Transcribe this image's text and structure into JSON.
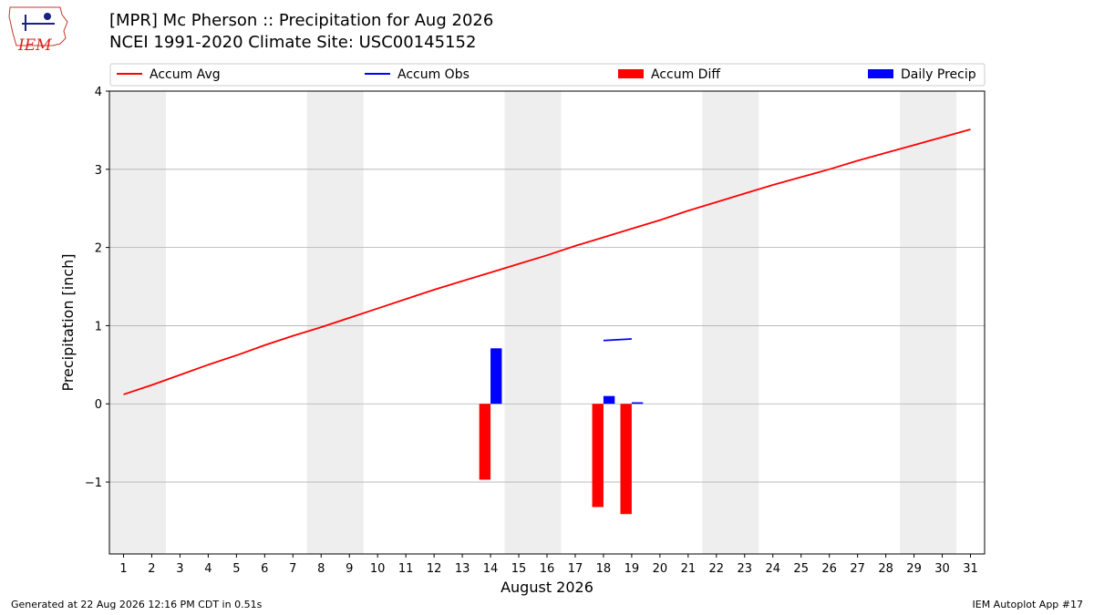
{
  "header": {
    "title_line1": "[MPR] Mc Pherson :: Precipitation for Aug 2026",
    "title_line2": "NCEI 1991-2020 Climate Site: USC00145152"
  },
  "logo": {
    "text": "IEM"
  },
  "footer": {
    "left": "Generated at 22 Aug 2026 12:16 PM CDT in 0.51s",
    "right": "IEM Autoplot App #17"
  },
  "chart_data": {
    "type": "bar",
    "xlabel": "August 2026",
    "ylabel": "Precipitation [inch]",
    "xlim": [
      0.5,
      31.5
    ],
    "ylim": [
      -1.92,
      4
    ],
    "yticks": [
      -1,
      0,
      1,
      2,
      3,
      4
    ],
    "ytick_labels": [
      "−1",
      "0",
      "1",
      "2",
      "3",
      "4"
    ],
    "xticks": [
      1,
      2,
      3,
      4,
      5,
      6,
      7,
      8,
      9,
      10,
      11,
      12,
      13,
      14,
      15,
      16,
      17,
      18,
      19,
      20,
      21,
      22,
      23,
      24,
      25,
      26,
      27,
      28,
      29,
      30,
      31
    ],
    "grid": "horizontal",
    "weekend_bands": [
      [
        1,
        2
      ],
      [
        8,
        9
      ],
      [
        15,
        16
      ],
      [
        22,
        23
      ],
      [
        29,
        30
      ]
    ],
    "colors": {
      "accum_avg": "#ff0000",
      "accum_obs": "#0000ff",
      "accum_diff": "#ff0000",
      "daily_precip": "#0000ff",
      "band": "#eeeeee"
    },
    "legend": {
      "placement": "top",
      "entries": [
        {
          "label": "Accum Avg",
          "kind": "line",
          "color": "#ff0000"
        },
        {
          "label": "Accum Obs",
          "kind": "line",
          "color": "#0000ff"
        },
        {
          "label": "Accum Diff",
          "kind": "bar",
          "color": "#ff0000"
        },
        {
          "label": "Daily Precip",
          "kind": "bar",
          "color": "#0000ff"
        }
      ]
    },
    "series": [
      {
        "name": "Accum Avg",
        "kind": "line",
        "x": [
          1,
          2,
          3,
          4,
          5,
          6,
          7,
          8,
          9,
          10,
          11,
          12,
          13,
          14,
          15,
          16,
          17,
          18,
          19,
          20,
          21,
          22,
          23,
          24,
          25,
          26,
          27,
          28,
          29,
          30,
          31
        ],
        "values": [
          0.12,
          0.24,
          0.37,
          0.5,
          0.62,
          0.75,
          0.87,
          0.98,
          1.1,
          1.22,
          1.34,
          1.46,
          1.57,
          1.68,
          1.79,
          1.9,
          2.02,
          2.13,
          2.24,
          2.35,
          2.47,
          2.58,
          2.69,
          2.8,
          2.9,
          3.0,
          3.11,
          3.21,
          3.31,
          3.41,
          3.51
        ]
      },
      {
        "name": "Accum Obs",
        "kind": "line",
        "x": [
          18,
          19
        ],
        "values": [
          0.81,
          0.83
        ]
      },
      {
        "name": "Accum Diff",
        "kind": "bar",
        "x": [
          14,
          18,
          19
        ],
        "values": [
          -0.97,
          -1.32,
          -1.41
        ]
      },
      {
        "name": "Daily Precip",
        "kind": "bar",
        "x": [
          14,
          18,
          19
        ],
        "values": [
          0.71,
          0.1,
          0.02
        ]
      }
    ]
  }
}
